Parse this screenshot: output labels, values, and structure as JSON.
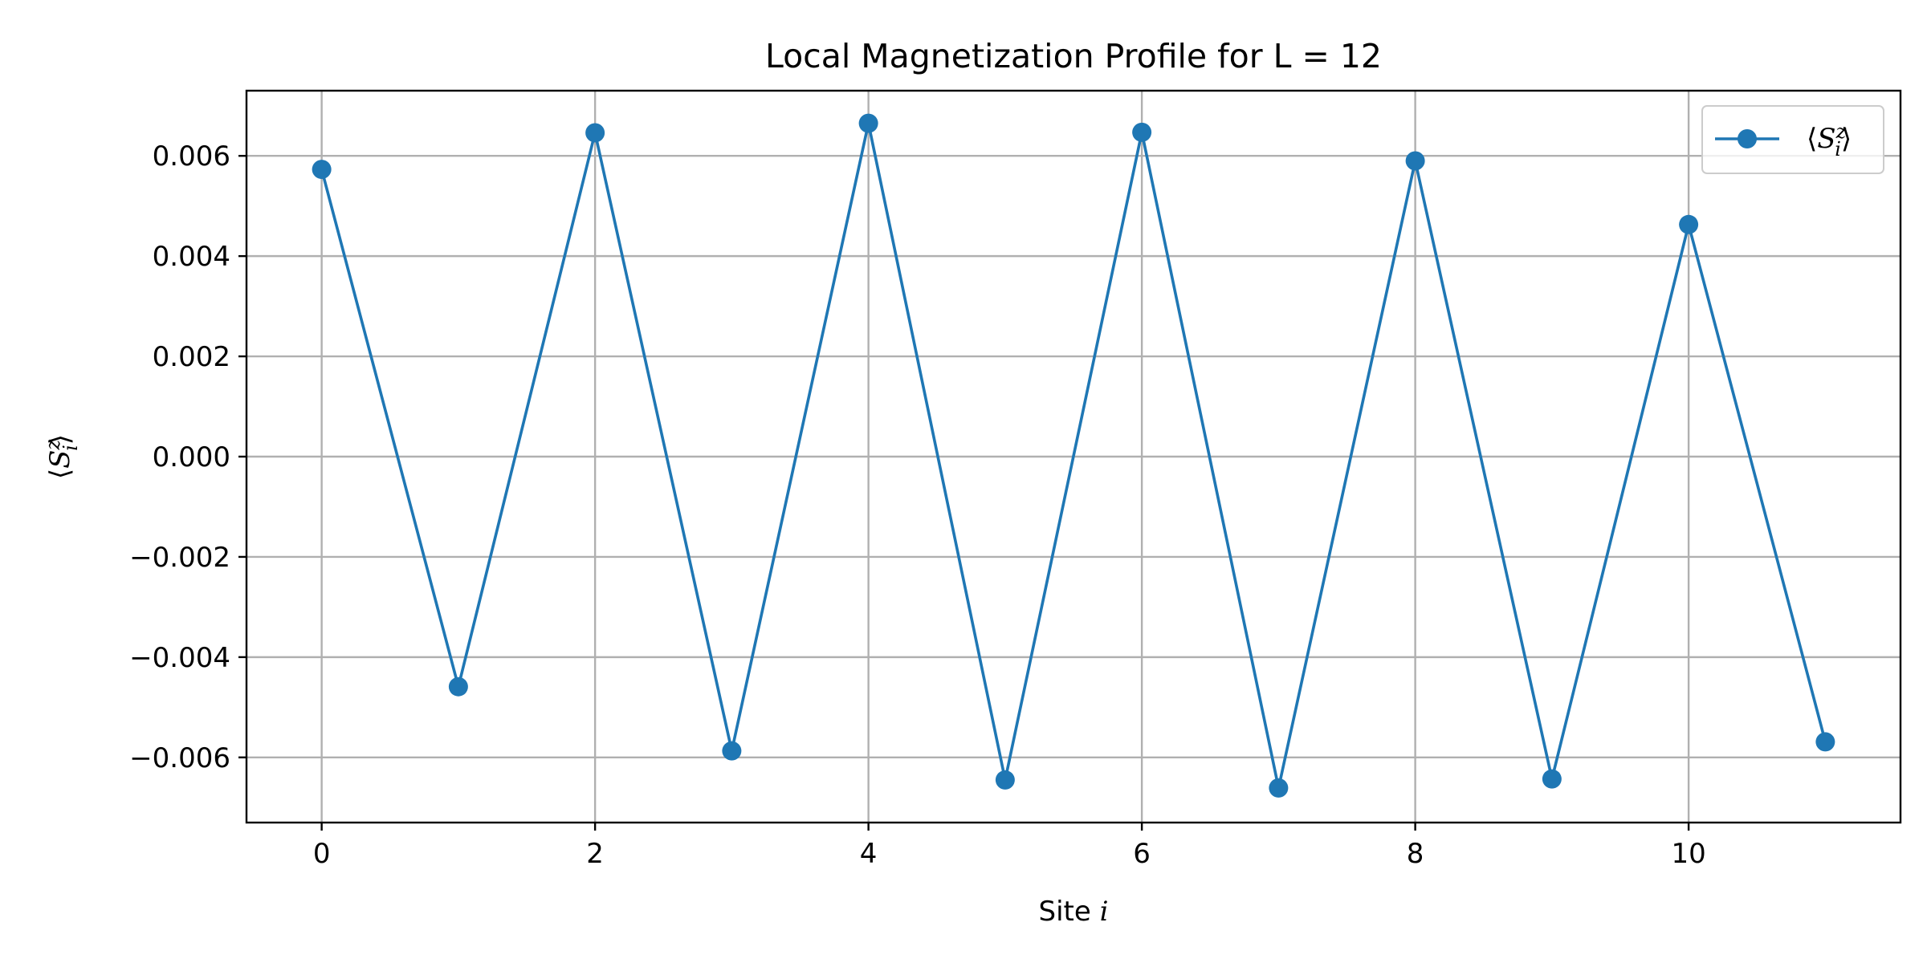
{
  "chart_data": {
    "type": "line",
    "title": "Local Magnetization Profile for L = 12",
    "xlabel": {
      "text": "Site ",
      "var": "i"
    },
    "ylabel": {
      "open": "⟨",
      "var": "S",
      "sup": "z",
      "sub": "i",
      "close": "⟩"
    },
    "legend": {
      "placement": "top-right",
      "label": {
        "open": "⟨",
        "var": "S",
        "sup": "z",
        "sub": "i",
        "close": "⟩"
      }
    },
    "grid": true,
    "xlim": [
      -0.55,
      11.55
    ],
    "ylim": [
      -0.0073,
      0.0073
    ],
    "x_ticks": [
      0,
      2,
      4,
      6,
      8,
      10
    ],
    "x_tick_labels": [
      "0",
      "2",
      "4",
      "6",
      "8",
      "10"
    ],
    "y_ticks": [
      0.006,
      0.004,
      0.002,
      0.0,
      -0.002,
      -0.004,
      -0.006
    ],
    "y_tick_labels": [
      "0.006",
      "0.004",
      "0.002",
      "0.000",
      "−0.002",
      "−0.004",
      "−0.006"
    ],
    "color": "#1f77b4",
    "series": [
      {
        "marker": "circle",
        "x": [
          0,
          1,
          2,
          3,
          4,
          5,
          6,
          7,
          8,
          9,
          10,
          11
        ],
        "y": [
          0.00573,
          -0.00459,
          0.00646,
          -0.00587,
          0.00665,
          -0.00645,
          0.00647,
          -0.00661,
          0.0059,
          -0.00643,
          0.00463,
          -0.00569
        ]
      }
    ]
  }
}
